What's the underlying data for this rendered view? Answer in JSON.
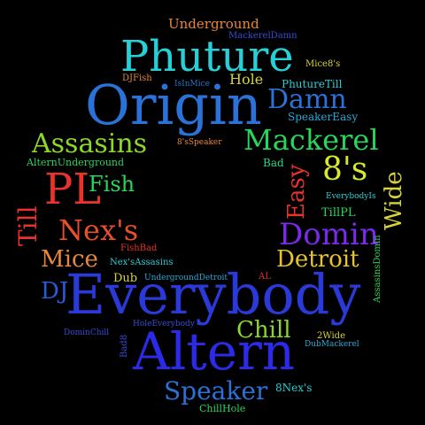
{
  "words": [
    {
      "id": "word-underground",
      "text": "Underground",
      "color": "#e8873a"
    },
    {
      "id": "word-mackereldamn",
      "text": "MackerelDamn",
      "color": "#3a4ad6"
    },
    {
      "id": "word-phuture",
      "text": "Phuture",
      "color": "#27cfd6"
    },
    {
      "id": "word-mice8s",
      "text": "Mice8's",
      "color": "#d8d23a"
    },
    {
      "id": "word-djfish",
      "text": "DJFish",
      "color": "#e8873a"
    },
    {
      "id": "word-isinmice",
      "text": "IsInMice",
      "color": "#2a72c8"
    },
    {
      "id": "word-hole",
      "text": "Hole",
      "color": "#d8d23a"
    },
    {
      "id": "word-phuturetill",
      "text": "PhutureTill",
      "color": "#27cfd6"
    },
    {
      "id": "word-origin",
      "text": "Origin",
      "color": "#2a72d8"
    },
    {
      "id": "word-damn",
      "text": "Damn",
      "color": "#2a72d8"
    },
    {
      "id": "word-speakereasy",
      "text": "SpeakerEasy",
      "color": "#27a9d6"
    },
    {
      "id": "word-assasins",
      "text": "Assasins",
      "color": "#8ad82a"
    },
    {
      "id": "word-8sspeaker",
      "text": "8'sSpeaker",
      "color": "#e8873a"
    },
    {
      "id": "word-mackerel",
      "text": "Mackerel",
      "color": "#2ad65a"
    },
    {
      "id": "word-alternunderground",
      "text": "AlternUnderground",
      "color": "#2ad65a"
    },
    {
      "id": "word-bad",
      "text": "Bad",
      "color": "#2ad68a"
    },
    {
      "id": "word-8s",
      "text": "8's",
      "color": "#d8e82a"
    },
    {
      "id": "word-pl",
      "text": "PL",
      "color": "#e8322a"
    },
    {
      "id": "word-fish",
      "text": "Fish",
      "color": "#2ad65a"
    },
    {
      "id": "word-easy",
      "text": "Easy",
      "color": "#e8322a"
    },
    {
      "id": "word-wide",
      "text": "Wide",
      "color": "#d8d23a"
    },
    {
      "id": "word-everybodyis",
      "text": "EverybodyIs",
      "color": "#27cfd6"
    },
    {
      "id": "word-till",
      "text": "Till",
      "color": "#e8322a"
    },
    {
      "id": "word-tillpl",
      "text": "TillPL",
      "color": "#2ad65a"
    },
    {
      "id": "word-nexs",
      "text": "Nex's",
      "color": "#e8502a"
    },
    {
      "id": "word-domin",
      "text": "Domin",
      "color": "#7a2ae8"
    },
    {
      "id": "word-fishbad",
      "text": "FishBad",
      "color": "#e8322a"
    },
    {
      "id": "word-mice",
      "text": "Mice",
      "color": "#e8873a"
    },
    {
      "id": "word-detroit",
      "text": "Detroit",
      "color": "#e8c42a"
    },
    {
      "id": "word-nexsassasins",
      "text": "Nex'sAssasins",
      "color": "#27cfd6"
    },
    {
      "id": "word-assasinsdomin",
      "text": "AssasinsDomin",
      "color": "#2ad65a"
    },
    {
      "id": "word-dj",
      "text": "DJ",
      "color": "#2a5ad8"
    },
    {
      "id": "word-dub",
      "text": "Dub",
      "color": "#d8d23a"
    },
    {
      "id": "word-undergrounddetroit",
      "text": "UndergroundDetroit",
      "color": "#27a9d6"
    },
    {
      "id": "word-al",
      "text": "AL",
      "color": "#e8322a"
    },
    {
      "id": "word-everybody",
      "text": "Everybody",
      "color": "#2a3ad8"
    },
    {
      "id": "word-holeeverybody",
      "text": "HoleEverybody",
      "color": "#3a4ad6"
    },
    {
      "id": "word-dominchill",
      "text": "DominChill",
      "color": "#3a4ad6"
    },
    {
      "id": "word-chill",
      "text": "Chill",
      "color": "#8ad82a"
    },
    {
      "id": "word-2wide",
      "text": "2Wide",
      "color": "#d8d23a"
    },
    {
      "id": "word-bad8",
      "text": "Bad8",
      "color": "#3a4ad6"
    },
    {
      "id": "word-dubmackerel",
      "text": "DubMackerel",
      "color": "#27a9d6"
    },
    {
      "id": "word-altern",
      "text": "Altern",
      "color": "#2a2ae8"
    },
    {
      "id": "word-speaker",
      "text": "Speaker",
      "color": "#2a72d8"
    },
    {
      "id": "word-8nexs",
      "text": "8Nex's",
      "color": "#27cfd6"
    },
    {
      "id": "word-chillhole",
      "text": "ChillHole",
      "color": "#2ad65a"
    }
  ]
}
